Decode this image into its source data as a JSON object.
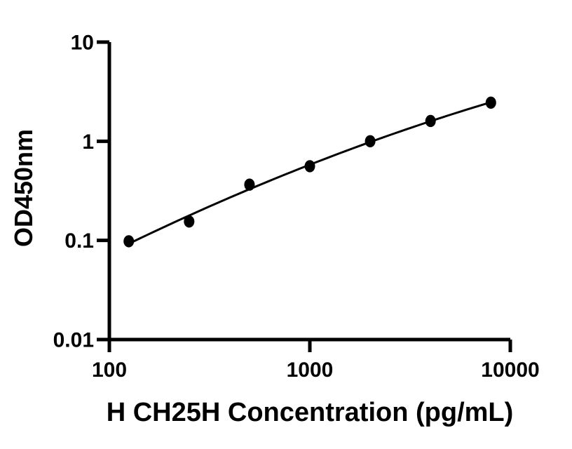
{
  "chart_data": {
    "type": "scatter",
    "title": "",
    "xlabel": "H CH25H Concentration (pg/mL)",
    "ylabel": "OD450nm",
    "x_scale": "log",
    "y_scale": "log",
    "xlim": [
      100,
      10000
    ],
    "ylim": [
      0.01,
      10
    ],
    "x_ticks": {
      "values": [
        100,
        1000,
        10000
      ],
      "labels": [
        "100",
        "1000",
        "10000"
      ]
    },
    "y_ticks": {
      "values": [
        10,
        1,
        0.1,
        0.01
      ],
      "labels": [
        "10",
        "1",
        "0.1",
        "0.01"
      ]
    },
    "grid": false,
    "legend": "none",
    "series": [
      {
        "name": "standard-curve",
        "x": [
          125,
          250,
          500,
          1000,
          2000,
          4000,
          8000
        ],
        "y": [
          0.098,
          0.155,
          0.365,
          0.56,
          1.0,
          1.6,
          2.45
        ],
        "marker": "filled-circle",
        "fit": "quadratic-loglog"
      }
    ],
    "colors": {
      "marker": "#000000",
      "curve": "#000000",
      "axis": "#000000",
      "background": "#ffffff"
    }
  }
}
